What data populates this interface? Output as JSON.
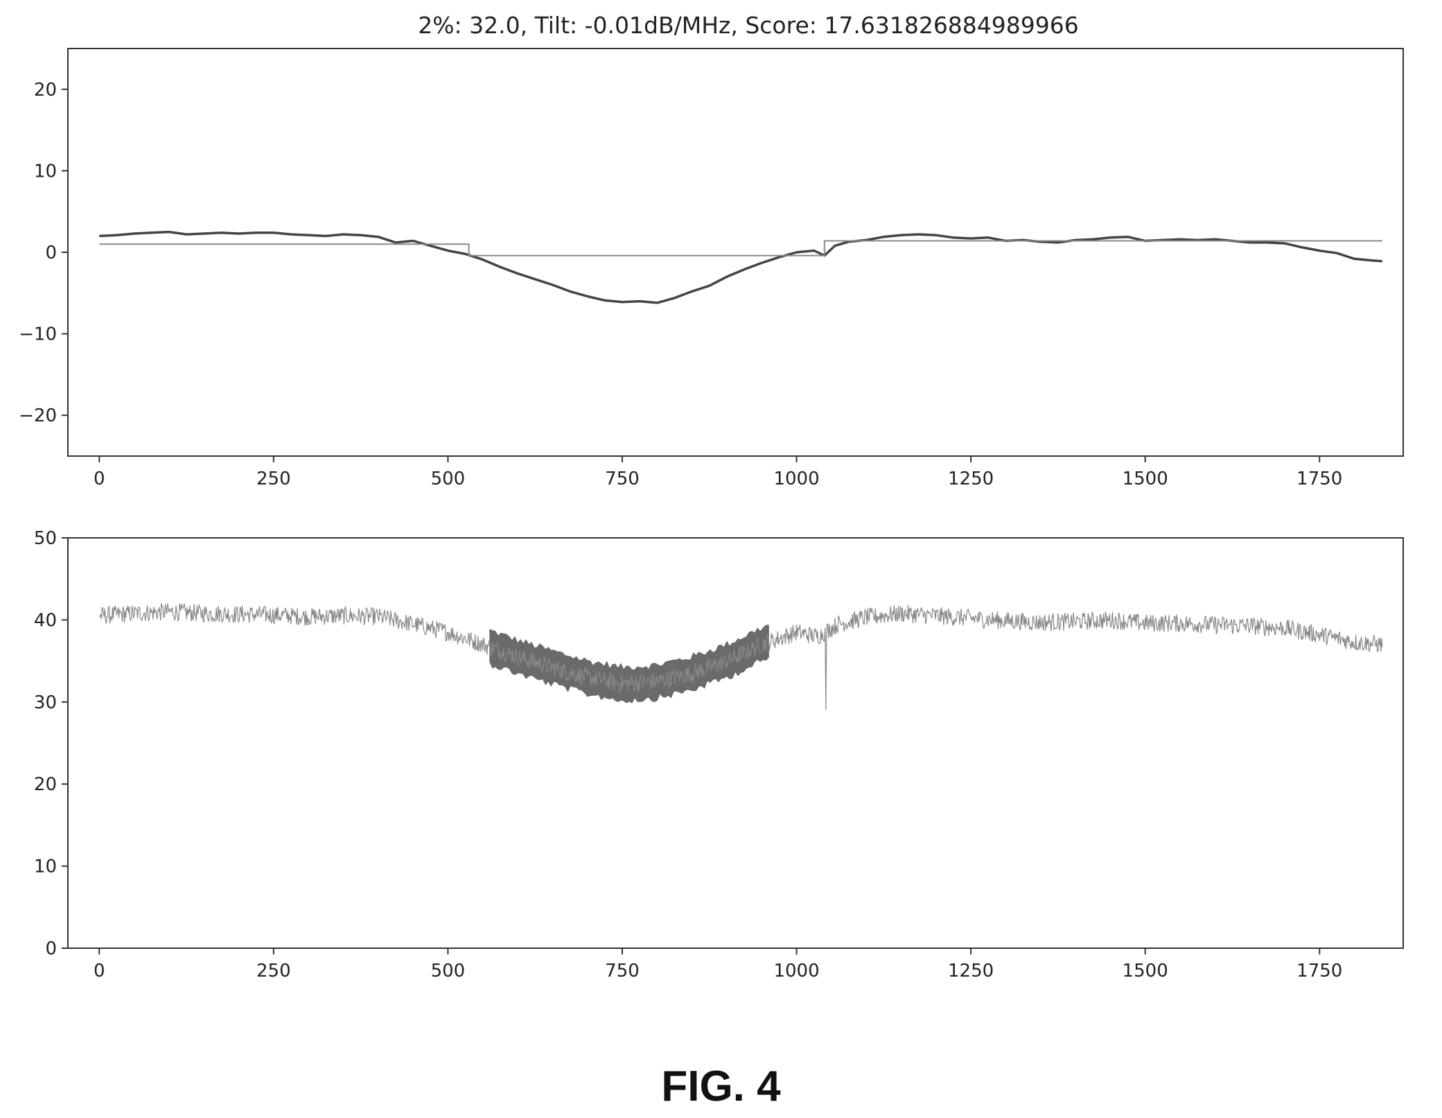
{
  "figure_caption": "FIG. 4",
  "colors": {
    "axes": "#333333",
    "trace_dark": "#444444",
    "trace_light": "#888888",
    "band": "#6a6a6a",
    "background": "#ffffff"
  },
  "chart_data": [
    {
      "type": "line",
      "title": "2%: 32.0, Tilt: -0.01dB/MHz, Score: 17.631826884989966",
      "xlabel": "",
      "ylabel": "",
      "xlim": [
        -45,
        1870
      ],
      "ylim": [
        -25,
        25
      ],
      "xticks": [
        0,
        250,
        500,
        750,
        1000,
        1250,
        1500,
        1750
      ],
      "yticks": [
        -20,
        -10,
        0,
        10,
        20
      ],
      "grid": false,
      "series": [
        {
          "style": "dark",
          "x": [
            0,
            25,
            50,
            75,
            100,
            125,
            150,
            175,
            200,
            225,
            250,
            275,
            300,
            325,
            350,
            375,
            400,
            425,
            450,
            475,
            500,
            525,
            550,
            575,
            600,
            625,
            650,
            675,
            700,
            725,
            750,
            775,
            800,
            825,
            850,
            875,
            900,
            925,
            950,
            975,
            1000,
            1025,
            1040,
            1055,
            1075,
            1100,
            1125,
            1150,
            1175,
            1200,
            1225,
            1250,
            1275,
            1300,
            1325,
            1350,
            1375,
            1400,
            1425,
            1450,
            1475,
            1500,
            1525,
            1550,
            1575,
            1600,
            1625,
            1650,
            1675,
            1700,
            1725,
            1750,
            1775,
            1800,
            1825,
            1840
          ],
          "y": [
            2.0,
            2.1,
            2.3,
            2.4,
            2.5,
            2.2,
            2.3,
            2.4,
            2.3,
            2.4,
            2.4,
            2.2,
            2.1,
            2.0,
            2.2,
            2.1,
            1.9,
            1.2,
            1.4,
            0.8,
            0.2,
            -0.2,
            -0.9,
            -1.8,
            -2.6,
            -3.3,
            -4.0,
            -4.8,
            -5.4,
            -5.9,
            -6.1,
            -6.0,
            -6.2,
            -5.6,
            -4.8,
            -4.1,
            -3.0,
            -2.1,
            -1.3,
            -0.6,
            0.0,
            0.2,
            -0.4,
            0.8,
            1.3,
            1.5,
            1.9,
            2.1,
            2.2,
            2.1,
            1.8,
            1.7,
            1.8,
            1.4,
            1.5,
            1.3,
            1.2,
            1.5,
            1.6,
            1.8,
            1.9,
            1.4,
            1.5,
            1.6,
            1.5,
            1.6,
            1.4,
            1.2,
            1.2,
            1.1,
            0.6,
            0.2,
            -0.1,
            -0.8,
            -1.0,
            -1.1
          ]
        },
        {
          "style": "light",
          "x": [
            0,
            530,
            530,
            1040,
            1040,
            1840
          ],
          "y": [
            1.0,
            1.0,
            -0.4,
            -0.4,
            1.4,
            1.4
          ]
        }
      ]
    },
    {
      "type": "line",
      "title": "",
      "xlabel": "",
      "ylabel": "",
      "xlim": [
        -45,
        1870
      ],
      "ylim": [
        0,
        50
      ],
      "xticks": [
        0,
        250,
        500,
        750,
        1000,
        1250,
        1500,
        1750
      ],
      "yticks": [
        0,
        10,
        20,
        30,
        40,
        50
      ],
      "grid": false,
      "series": [
        {
          "style": "noisy",
          "x": [
            0,
            50,
            100,
            150,
            200,
            250,
            300,
            350,
            400,
            450,
            500,
            550,
            600,
            650,
            700,
            750,
            800,
            850,
            900,
            950,
            1000,
            1030,
            1060,
            1100,
            1150,
            1200,
            1250,
            1300,
            1350,
            1400,
            1450,
            1500,
            1550,
            1600,
            1650,
            1700,
            1750,
            1800,
            1840
          ],
          "y": [
            40.5,
            40.8,
            41.0,
            40.8,
            40.7,
            40.6,
            40.4,
            40.5,
            40.4,
            39.5,
            38.5,
            37.0,
            35.5,
            34.2,
            33.0,
            32.2,
            32.5,
            33.5,
            35.0,
            37.0,
            38.5,
            38.0,
            39.5,
            40.3,
            40.8,
            40.5,
            40.2,
            39.9,
            39.7,
            39.8,
            40.0,
            39.6,
            39.6,
            39.4,
            39.3,
            39.0,
            38.2,
            37.3,
            37.0
          ],
          "band": {
            "from": 560,
            "to": 960,
            "half_width": 2.0
          },
          "spike": {
            "x": 1042,
            "y": 29.0
          }
        }
      ]
    }
  ]
}
